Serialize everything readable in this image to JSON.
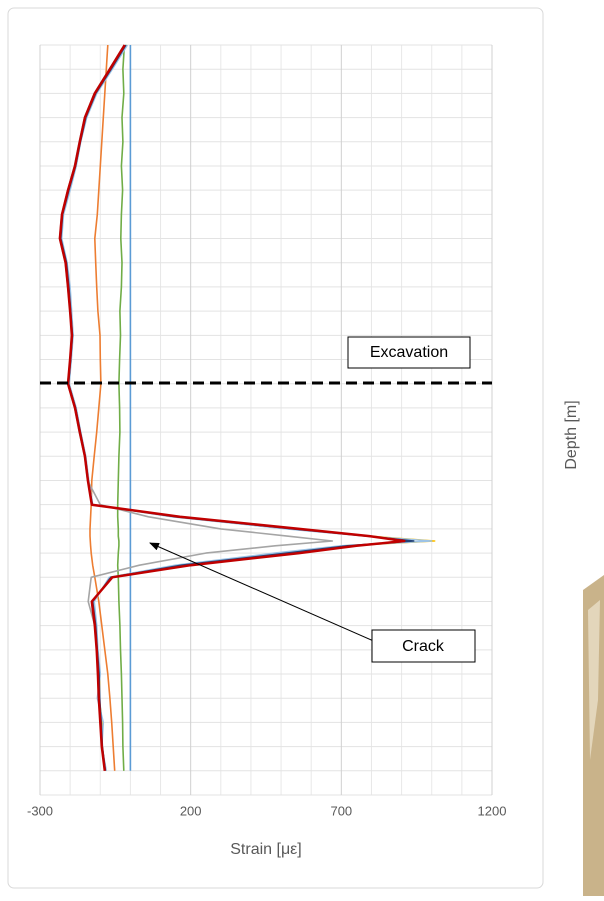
{
  "chart_data": {
    "type": "line",
    "x_label": "Strain [με]",
    "y_label": "Depth [m]",
    "annotations": [
      "Excavation",
      "Crack"
    ],
    "xlim": [
      -300,
      1200
    ],
    "xticks": [
      -300,
      200,
      700,
      1200
    ],
    "ylim": [
      0,
      31
    ],
    "y_inverted": true,
    "grid": true,
    "depth": [
      0,
      1,
      2,
      3,
      4,
      5,
      6,
      7,
      8,
      9,
      10,
      11,
      12,
      13,
      14,
      15,
      16,
      17,
      18,
      19,
      19.5,
      20,
      20.3,
      20.5,
      20.7,
      21,
      21.5,
      22,
      23,
      24,
      25,
      26,
      27,
      28,
      29,
      30
    ],
    "series": [
      {
        "color": "#70ad47",
        "values": [
          -20,
          -25,
          -22,
          -28,
          -25,
          -30,
          -26,
          -30,
          -32,
          -28,
          -30,
          -35,
          -33,
          -36,
          -38,
          -36,
          -35,
          -38,
          -40,
          -42,
          -42,
          -40,
          -40,
          -38,
          -38,
          -40,
          -42,
          -40,
          -38,
          -35,
          -33,
          -30,
          -28,
          -26,
          -25,
          -22
        ]
      },
      {
        "color": "#5b9bd5",
        "values": [
          0,
          0,
          0,
          0,
          0,
          0,
          0,
          0,
          0,
          0,
          0,
          0,
          0,
          0,
          0,
          0,
          0,
          0,
          0,
          0,
          0,
          0,
          0,
          0,
          0,
          0,
          0,
          0,
          0,
          0,
          0,
          0,
          0,
          0,
          0,
          0
        ]
      },
      {
        "color": "#ed7d31",
        "values": [
          -75,
          -80,
          -85,
          -90,
          -95,
          -100,
          -105,
          -110,
          -118,
          -115,
          -112,
          -108,
          -101,
          -100,
          -98,
          -105,
          -112,
          -120,
          -128,
          -130,
          -132,
          -134,
          -134,
          -133,
          -132,
          -130,
          -125,
          -118,
          -105,
          -95,
          -85,
          -75,
          -68,
          -62,
          -57,
          -52
        ]
      },
      {
        "color": "#ffc000",
        "values": [
          -12,
          -62,
          -114,
          -147,
          -166,
          -181,
          -202,
          -223,
          -230,
          -211,
          -202,
          -196,
          -191,
          -197,
          -204,
          -181,
          -166,
          -149,
          -139,
          -126,
          145,
          530,
          790,
          1010,
          710,
          500,
          160,
          -68,
          -122,
          -113,
          -109,
          -102,
          -104,
          -94,
          -94,
          -82
        ]
      },
      {
        "color": "#9dc3e6",
        "values": [
          -10,
          -60,
          -112,
          -145,
          -165,
          -180,
          -200,
          -222,
          -228,
          -210,
          -200,
          -195,
          -190,
          -196,
          -203,
          -180,
          -165,
          -148,
          -138,
          -125,
          140,
          520,
          780,
          1000,
          700,
          480,
          150,
          -70,
          -120,
          -112,
          -108,
          -100,
          -110,
          -90,
          -95,
          -80
        ]
      },
      {
        "color": "#264478",
        "values": [
          -15,
          -64,
          -115,
          -148,
          -166,
          -182,
          -204,
          -225,
          -231,
          -212,
          -204,
          -198,
          -192,
          -198,
          -205,
          -182,
          -166,
          -150,
          -140,
          -126,
          150,
          540,
          785,
          940,
          720,
          520,
          170,
          -65,
          -125,
          -115,
          -110,
          -104,
          -102,
          -97,
          -93,
          -83
        ]
      },
      {
        "color": "#a5a5a5",
        "values": [
          -20,
          -70,
          -120,
          -152,
          -170,
          -186,
          -208,
          -228,
          -235,
          -216,
          -208,
          -200,
          -195,
          -200,
          -208,
          -185,
          -170,
          -152,
          -142,
          -100,
          60,
          300,
          520,
          670,
          480,
          250,
          30,
          -130,
          -140,
          -118,
          -112,
          -108,
          -105,
          -100,
          -95,
          -85
        ]
      },
      {
        "color": "#c00000",
        "values": [
          -19,
          -68,
          -118,
          -151,
          -168,
          -184,
          -207,
          -227,
          -234,
          -215,
          -207,
          -200,
          -194,
          -200,
          -207,
          -184,
          -168,
          -151,
          -141,
          -128,
          164,
          561,
          793,
          909,
          750,
          560,
          200,
          -60,
          -128,
          -118,
          -112,
          -108,
          -105,
          -100,
          -95,
          -85
        ]
      }
    ]
  }
}
